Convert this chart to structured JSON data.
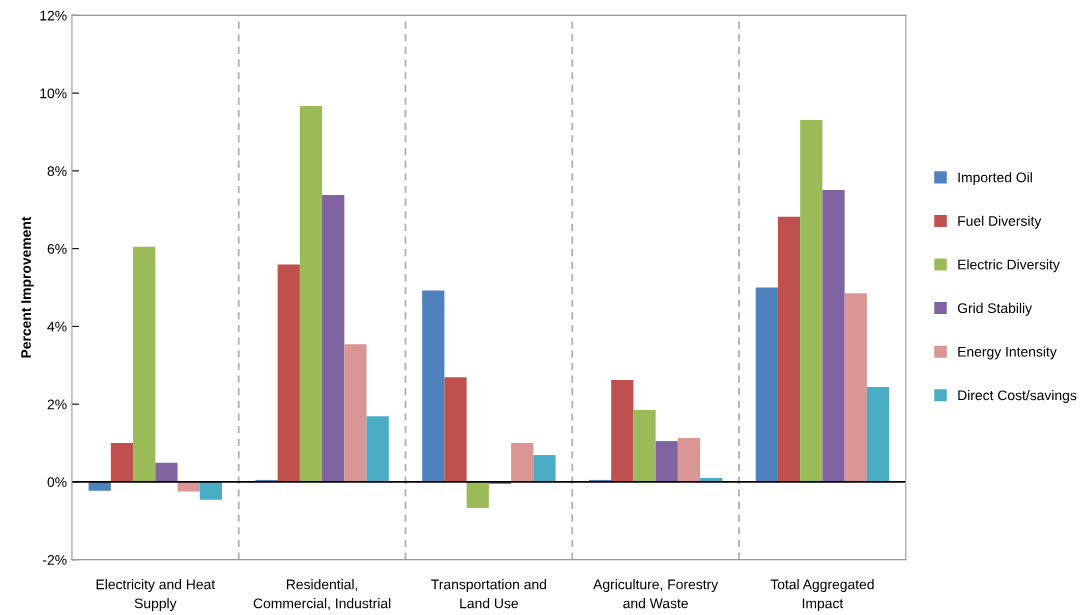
{
  "chart_data": {
    "type": "bar",
    "ylabel": "Percent Improvement",
    "categories": [
      "Electricity and Heat\nSupply",
      "Residential,\nCommercial, Industrial",
      "Transportation and\nLand Use",
      "Agriculture, Forestry\nand Waste",
      "Total Aggregated\nImpact"
    ],
    "series": [
      {
        "name": "Imported Oil",
        "color": "#4f81bd",
        "values": [
          -0.23,
          0.05,
          4.92,
          0.05,
          5.0
        ]
      },
      {
        "name": "Fuel Diversity",
        "color": "#c0504d",
        "values": [
          1.0,
          5.59,
          2.69,
          2.62,
          6.82
        ]
      },
      {
        "name": "Electric Diversity",
        "color": "#9bbb59",
        "values": [
          6.05,
          9.67,
          -0.67,
          1.85,
          9.31
        ]
      },
      {
        "name": "Grid Stabiliy",
        "color": "#8064a2",
        "values": [
          0.49,
          7.38,
          -0.05,
          1.05,
          7.51
        ]
      },
      {
        "name": "Energy Intensity",
        "color": "#d99694",
        "values": [
          -0.25,
          3.54,
          1.0,
          1.13,
          4.85
        ]
      },
      {
        "name": "Direct Cost/savings",
        "color": "#4bacc6",
        "values": [
          -0.46,
          1.69,
          0.69,
          0.1,
          2.44
        ]
      }
    ],
    "ylim": [
      -2,
      12
    ],
    "yticks": [
      {
        "value": -2,
        "label": "-2%"
      },
      {
        "value": 0,
        "label": "0%"
      },
      {
        "value": 2,
        "label": "2%"
      },
      {
        "value": 4,
        "label": "4%"
      },
      {
        "value": 6,
        "label": "6%"
      },
      {
        "value": 8,
        "label": "8%"
      },
      {
        "value": 10,
        "label": "10%"
      },
      {
        "value": 12,
        "label": "12%"
      }
    ],
    "grid": "x",
    "legend": "right"
  }
}
